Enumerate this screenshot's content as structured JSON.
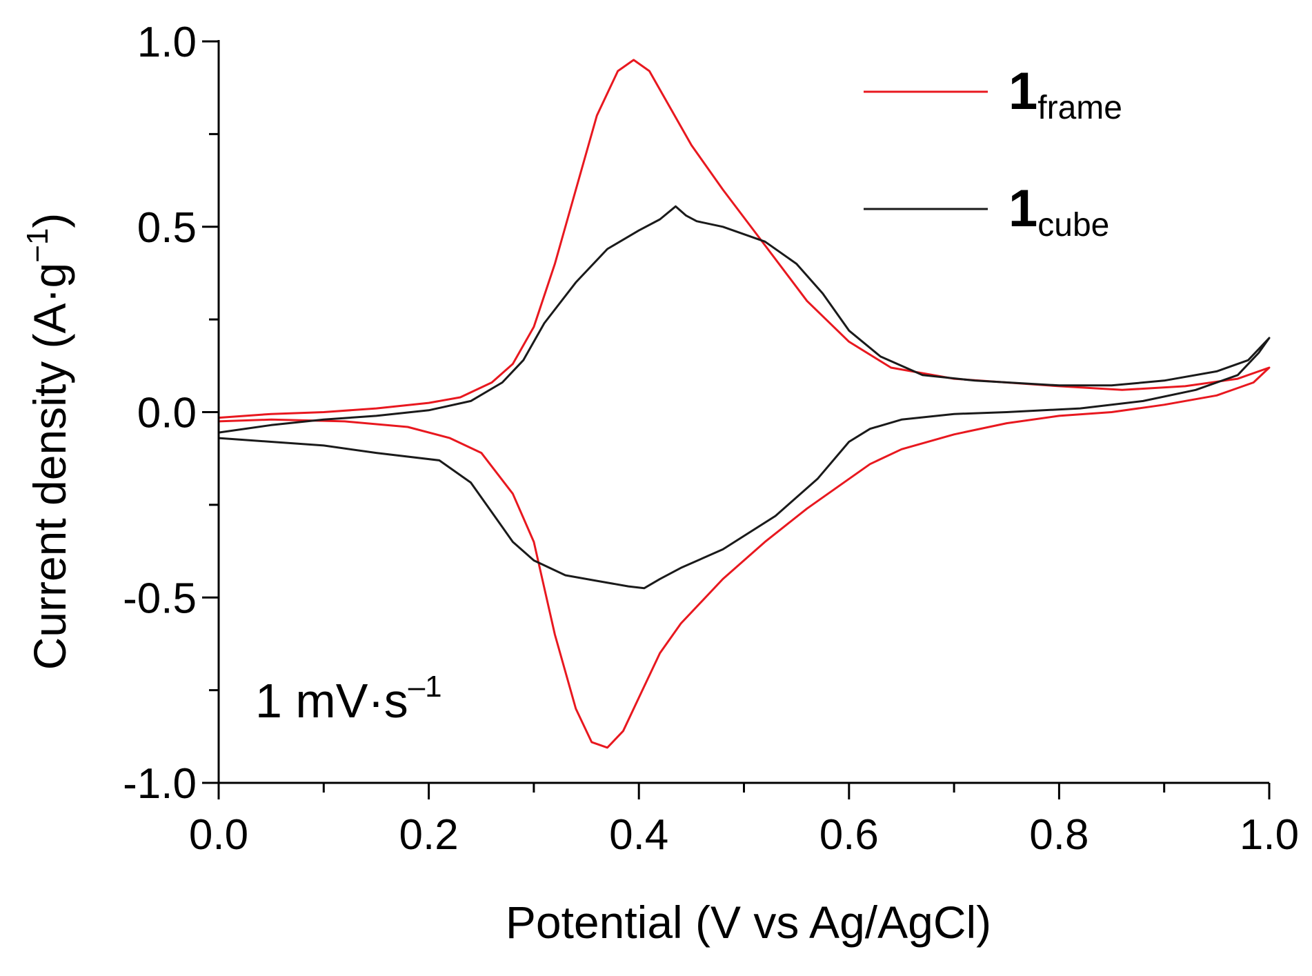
{
  "chart_data": {
    "type": "line",
    "xlabel": "Potential (V vs Ag/AgCl)",
    "ylabel": {
      "main": "Current density (A·g",
      "sup": "−1",
      "close": ")"
    },
    "xlim": [
      0.0,
      1.0
    ],
    "ylim": [
      -1.0,
      1.0
    ],
    "x_ticks": [
      0.0,
      0.2,
      0.4,
      0.6,
      0.8,
      1.0
    ],
    "x_tick_labels": [
      "0.0",
      "0.2",
      "0.4",
      "0.6",
      "0.8",
      "1.0"
    ],
    "x_minor_ticks": [
      0.1,
      0.3,
      0.5,
      0.7,
      0.9
    ],
    "y_ticks": [
      -1.0,
      -0.5,
      0.0,
      0.5,
      1.0
    ],
    "y_tick_labels": [
      "-1.0",
      "-0.5",
      "0.0",
      "0.5",
      "1.0"
    ],
    "y_minor_ticks": [
      -0.75,
      -0.25,
      0.25,
      0.75
    ],
    "grid": false,
    "legend_position": "top-right",
    "annotation": {
      "main": "1 mV·s",
      "sup": "–1"
    },
    "series": [
      {
        "name": "1frame",
        "label_main": "1",
        "label_sub": "frame",
        "color": "#e8181f",
        "points": [
          [
            0.0,
            -0.015
          ],
          [
            0.05,
            -0.005
          ],
          [
            0.1,
            0.0
          ],
          [
            0.15,
            0.01
          ],
          [
            0.2,
            0.025
          ],
          [
            0.23,
            0.04
          ],
          [
            0.26,
            0.08
          ],
          [
            0.28,
            0.13
          ],
          [
            0.3,
            0.23
          ],
          [
            0.32,
            0.4
          ],
          [
            0.34,
            0.6
          ],
          [
            0.36,
            0.8
          ],
          [
            0.38,
            0.92
          ],
          [
            0.395,
            0.95
          ],
          [
            0.41,
            0.92
          ],
          [
            0.43,
            0.82
          ],
          [
            0.45,
            0.72
          ],
          [
            0.48,
            0.6
          ],
          [
            0.52,
            0.45
          ],
          [
            0.56,
            0.3
          ],
          [
            0.6,
            0.19
          ],
          [
            0.64,
            0.12
          ],
          [
            0.7,
            0.09
          ],
          [
            0.8,
            0.07
          ],
          [
            0.86,
            0.06
          ],
          [
            0.92,
            0.07
          ],
          [
            0.97,
            0.09
          ],
          [
            1.0,
            0.12
          ],
          [
            0.985,
            0.08
          ],
          [
            0.95,
            0.045
          ],
          [
            0.9,
            0.02
          ],
          [
            0.85,
            0.0
          ],
          [
            0.8,
            -0.01
          ],
          [
            0.75,
            -0.03
          ],
          [
            0.7,
            -0.06
          ],
          [
            0.65,
            -0.1
          ],
          [
            0.62,
            -0.14
          ],
          [
            0.6,
            -0.18
          ],
          [
            0.56,
            -0.26
          ],
          [
            0.52,
            -0.35
          ],
          [
            0.48,
            -0.45
          ],
          [
            0.44,
            -0.57
          ],
          [
            0.42,
            -0.65
          ],
          [
            0.4,
            -0.77
          ],
          [
            0.385,
            -0.86
          ],
          [
            0.37,
            -0.905
          ],
          [
            0.355,
            -0.89
          ],
          [
            0.34,
            -0.8
          ],
          [
            0.32,
            -0.6
          ],
          [
            0.3,
            -0.35
          ],
          [
            0.28,
            -0.22
          ],
          [
            0.25,
            -0.11
          ],
          [
            0.22,
            -0.07
          ],
          [
            0.18,
            -0.04
          ],
          [
            0.12,
            -0.025
          ],
          [
            0.05,
            -0.02
          ],
          [
            0.0,
            -0.025
          ]
        ]
      },
      {
        "name": "1cube",
        "label_main": "1",
        "label_sub": "cube",
        "color": "#1a1a1a",
        "points": [
          [
            0.0,
            -0.055
          ],
          [
            0.05,
            -0.035
          ],
          [
            0.1,
            -0.02
          ],
          [
            0.15,
            -0.01
          ],
          [
            0.2,
            0.005
          ],
          [
            0.24,
            0.03
          ],
          [
            0.27,
            0.08
          ],
          [
            0.29,
            0.14
          ],
          [
            0.31,
            0.24
          ],
          [
            0.34,
            0.35
          ],
          [
            0.37,
            0.44
          ],
          [
            0.4,
            0.49
          ],
          [
            0.42,
            0.52
          ],
          [
            0.435,
            0.555
          ],
          [
            0.445,
            0.53
          ],
          [
            0.455,
            0.515
          ],
          [
            0.48,
            0.5
          ],
          [
            0.52,
            0.46
          ],
          [
            0.55,
            0.4
          ],
          [
            0.575,
            0.32
          ],
          [
            0.6,
            0.22
          ],
          [
            0.63,
            0.15
          ],
          [
            0.67,
            0.1
          ],
          [
            0.72,
            0.085
          ],
          [
            0.8,
            0.072
          ],
          [
            0.85,
            0.072
          ],
          [
            0.9,
            0.085
          ],
          [
            0.95,
            0.11
          ],
          [
            0.98,
            0.14
          ],
          [
            1.0,
            0.2
          ],
          [
            0.99,
            0.16
          ],
          [
            0.97,
            0.1
          ],
          [
            0.93,
            0.06
          ],
          [
            0.88,
            0.03
          ],
          [
            0.82,
            0.01
          ],
          [
            0.75,
            0.0
          ],
          [
            0.7,
            -0.005
          ],
          [
            0.65,
            -0.02
          ],
          [
            0.62,
            -0.045
          ],
          [
            0.6,
            -0.08
          ],
          [
            0.57,
            -0.18
          ],
          [
            0.53,
            -0.28
          ],
          [
            0.48,
            -0.37
          ],
          [
            0.44,
            -0.42
          ],
          [
            0.42,
            -0.45
          ],
          [
            0.405,
            -0.475
          ],
          [
            0.39,
            -0.47
          ],
          [
            0.36,
            -0.455
          ],
          [
            0.33,
            -0.44
          ],
          [
            0.3,
            -0.4
          ],
          [
            0.28,
            -0.35
          ],
          [
            0.26,
            -0.27
          ],
          [
            0.24,
            -0.19
          ],
          [
            0.21,
            -0.13
          ],
          [
            0.15,
            -0.11
          ],
          [
            0.1,
            -0.09
          ],
          [
            0.05,
            -0.08
          ],
          [
            0.0,
            -0.07
          ]
        ]
      }
    ]
  }
}
